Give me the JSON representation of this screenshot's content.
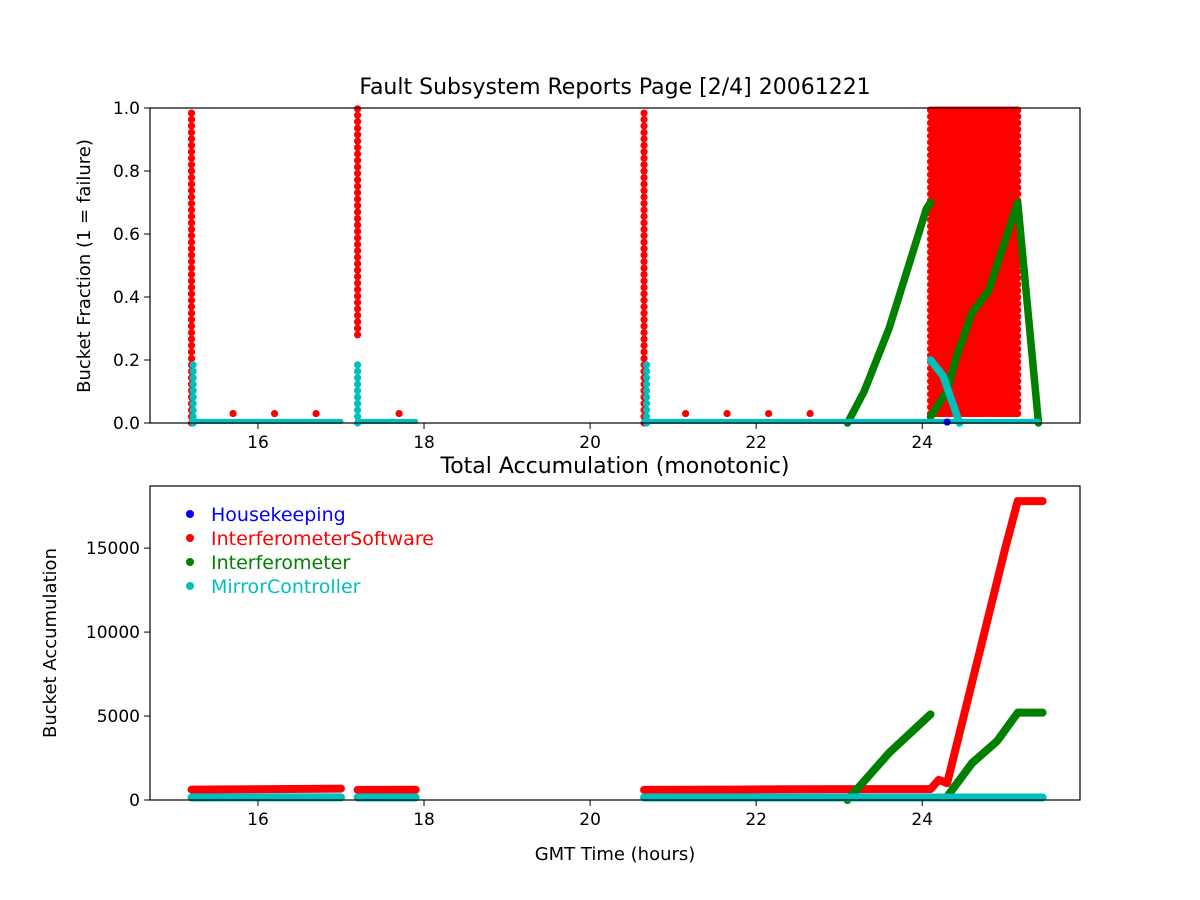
{
  "colors": {
    "Housekeeping": "#0000ff",
    "InterferometerSoftware": "#ff0000",
    "Interferometer": "#008000",
    "MirrorController": "#00bfbf"
  },
  "chart_data": [
    {
      "id": "top",
      "type": "scatter",
      "title": "Fault Subsystem Reports Page [2/4] 20061221",
      "xlabel": "",
      "ylabel": "Bucket Fraction (1 = failure)",
      "xlim": [
        14.7,
        25.9
      ],
      "ylim": [
        0.0,
        1.0
      ],
      "xticks": [
        16,
        18,
        20,
        22,
        24
      ],
      "yticks": [
        0.0,
        0.2,
        0.4,
        0.6,
        0.8,
        1.0
      ],
      "xtick_labels": [
        "16",
        "18",
        "20",
        "22",
        "24"
      ],
      "ytick_labels": [
        "0.0",
        "0.2",
        "0.4",
        "0.6",
        "0.8",
        "1.0"
      ],
      "grid": false,
      "series": [
        {
          "name": "InterferometerSoftware",
          "color": "#ff0000",
          "markers": [
            {
              "kind": "vline",
              "x": 15.2,
              "y0": 0.0,
              "y1": 1.0
            },
            {
              "kind": "vline",
              "x": 17.2,
              "y0": 0.28,
              "y1": 1.0
            },
            {
              "kind": "vline",
              "x": 20.65,
              "y0": 0.0,
              "y1": 1.0
            },
            {
              "kind": "points",
              "x": [
                15.7,
                16.2,
                16.7,
                17.7,
                21.15,
                21.65,
                22.15,
                22.65
              ],
              "y": [
                0.03,
                0.03,
                0.03,
                0.03,
                0.03,
                0.03,
                0.03,
                0.03
              ]
            },
            {
              "kind": "band",
              "x0": 24.1,
              "x1": 25.15,
              "y0": 0.03,
              "y1": 1.0
            }
          ]
        },
        {
          "name": "Interferometer",
          "color": "#008000",
          "markers": [
            {
              "kind": "line",
              "x": [
                23.1,
                23.3,
                23.6,
                24.05,
                24.1
              ],
              "y": [
                0.0,
                0.1,
                0.3,
                0.68,
                0.7
              ]
            },
            {
              "kind": "line",
              "x": [
                24.1,
                24.3,
                24.4,
                24.6,
                24.8,
                25.0,
                25.15,
                25.4
              ],
              "y": [
                0.02,
                0.1,
                0.2,
                0.35,
                0.42,
                0.58,
                0.7,
                0.0
              ]
            }
          ]
        },
        {
          "name": "MirrorController",
          "color": "#00bfbf",
          "markers": [
            {
              "kind": "vline",
              "x": 15.22,
              "y0": 0.0,
              "y1": 0.2
            },
            {
              "kind": "vline",
              "x": 17.2,
              "y0": 0.0,
              "y1": 0.19
            },
            {
              "kind": "vline",
              "x": 20.68,
              "y0": 0.0,
              "y1": 0.2
            },
            {
              "kind": "hline",
              "x0": 15.2,
              "x1": 17.0,
              "y": 0.005
            },
            {
              "kind": "hline",
              "x0": 17.2,
              "x1": 17.9,
              "y": 0.005
            },
            {
              "kind": "hline",
              "x0": 20.65,
              "x1": 25.4,
              "y": 0.005
            },
            {
              "kind": "line",
              "x": [
                24.1,
                24.25,
                24.45
              ],
              "y": [
                0.2,
                0.15,
                0.0
              ]
            }
          ]
        },
        {
          "name": "Housekeeping",
          "color": "#0000ff",
          "markers": [
            {
              "kind": "points",
              "x": [
                24.3
              ],
              "y": [
                0.003
              ]
            }
          ]
        }
      ]
    },
    {
      "id": "bottom",
      "type": "scatter",
      "title": "Total Accumulation (monotonic)",
      "xlabel": "GMT Time (hours)",
      "ylabel": "Bucket Accumulation",
      "xlim": [
        14.7,
        25.9
      ],
      "ylim": [
        0,
        18700
      ],
      "xticks": [
        16,
        18,
        20,
        22,
        24
      ],
      "yticks": [
        0,
        5000,
        10000,
        15000
      ],
      "xtick_labels": [
        "16",
        "18",
        "20",
        "22",
        "24"
      ],
      "ytick_labels": [
        "0",
        "5000",
        "10000",
        "15000"
      ],
      "grid": false,
      "legend": {
        "placement": "upper-left",
        "entries": [
          "Housekeeping",
          "InterferometerSoftware",
          "Interferometer",
          "MirrorController"
        ]
      },
      "series": [
        {
          "name": "InterferometerSoftware",
          "color": "#ff0000",
          "segments": [
            {
              "x": [
                15.2,
                16.2,
                17.0
              ],
              "y": [
                620,
                650,
                680
              ]
            },
            {
              "x": [
                17.2,
                17.9
              ],
              "y": [
                600,
                610
              ]
            },
            {
              "x": [
                20.65,
                21.7,
                22.5,
                23.5,
                24.1,
                24.2,
                24.3,
                24.6,
                24.8,
                25.0,
                25.15,
                25.45
              ],
              "y": [
                600,
                620,
                640,
                650,
                650,
                1200,
                1000,
                7000,
                11000,
                15000,
                17800,
                17800
              ]
            }
          ]
        },
        {
          "name": "Interferometer",
          "color": "#008000",
          "segments": [
            {
              "x": [
                23.1,
                23.6,
                24.1
              ],
              "y": [
                0,
                2800,
                5100
              ]
            },
            {
              "x": [
                24.3,
                24.6,
                24.9,
                25.15,
                25.45
              ],
              "y": [
                200,
                2200,
                3500,
                5200,
                5200
              ]
            }
          ]
        },
        {
          "name": "MirrorController",
          "color": "#00bfbf",
          "segments": [
            {
              "x": [
                15.2,
                17.0
              ],
              "y": [
                150,
                160
              ]
            },
            {
              "x": [
                17.2,
                17.9
              ],
              "y": [
                150,
                150
              ]
            },
            {
              "x": [
                20.65,
                25.45
              ],
              "y": [
                150,
                150
              ]
            }
          ]
        },
        {
          "name": "Housekeeping",
          "color": "#0000ff",
          "segments": []
        }
      ]
    }
  ]
}
